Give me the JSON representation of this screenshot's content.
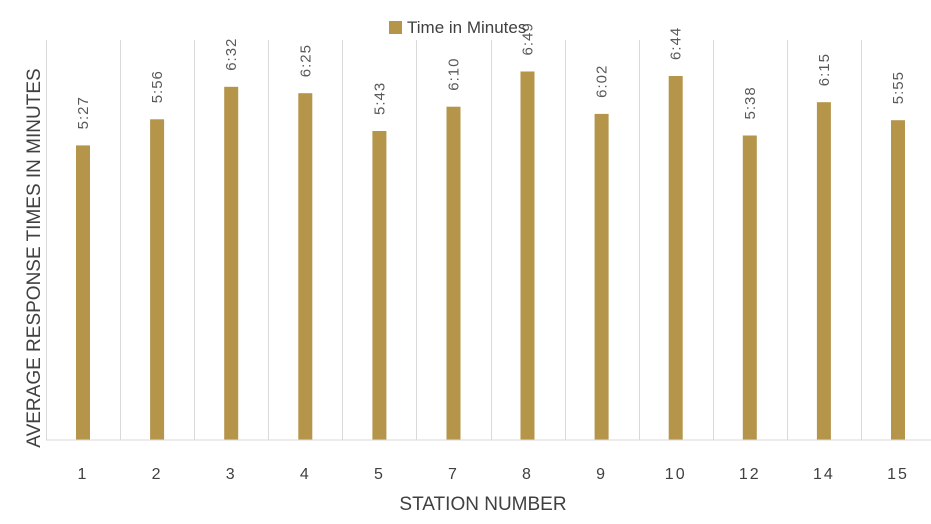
{
  "chart_data": {
    "type": "bar",
    "title": "",
    "xlabel": "STATION NUMBER",
    "ylabel": "AVERAGE RESPONSE TIMES IN MINUTES",
    "categories": [
      "1",
      "2",
      "3",
      "4",
      "5",
      "7",
      "8",
      "9",
      "10",
      "12",
      "14",
      "15"
    ],
    "series": [
      {
        "name": "Time in Minutes",
        "color": "#b5954a",
        "values": [
          5.45,
          5.9333,
          6.5333,
          6.4167,
          5.7167,
          6.1667,
          6.8167,
          6.0333,
          6.7333,
          5.6333,
          6.25,
          5.9167
        ],
        "labels": [
          "5:27",
          "5:56",
          "6:32",
          "6:25",
          "5:43",
          "6:10",
          "6:49",
          "6:02",
          "6:44",
          "5:38",
          "6:15",
          "5:55"
        ]
      }
    ],
    "ylim": [
      0,
      7.4
    ],
    "grid": "vertical",
    "legend_position": "top"
  }
}
